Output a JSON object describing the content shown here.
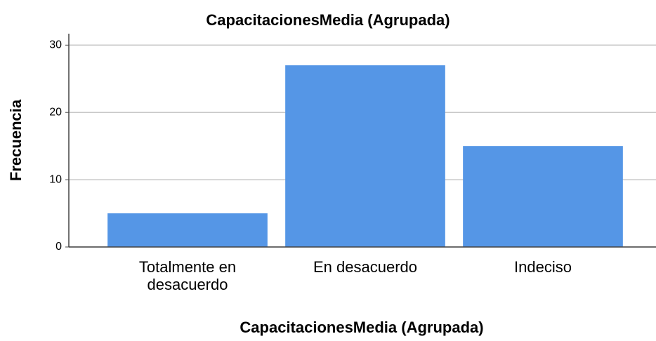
{
  "chart_data": {
    "type": "bar",
    "title": "CapacitacionesMedia (Agrupada)",
    "x_label": "CapacitacionesMedia (Agrupada)",
    "y_label": "Frecuencia",
    "categories": [
      "Totalmente en desacuerdo",
      "En desacuerdo",
      "Indeciso"
    ],
    "values": [
      5,
      27,
      15
    ],
    "color": "#5596e6",
    "ylim": [
      0,
      31.7
    ],
    "yticks": [
      0,
      10,
      20,
      30
    ],
    "grid": true
  }
}
